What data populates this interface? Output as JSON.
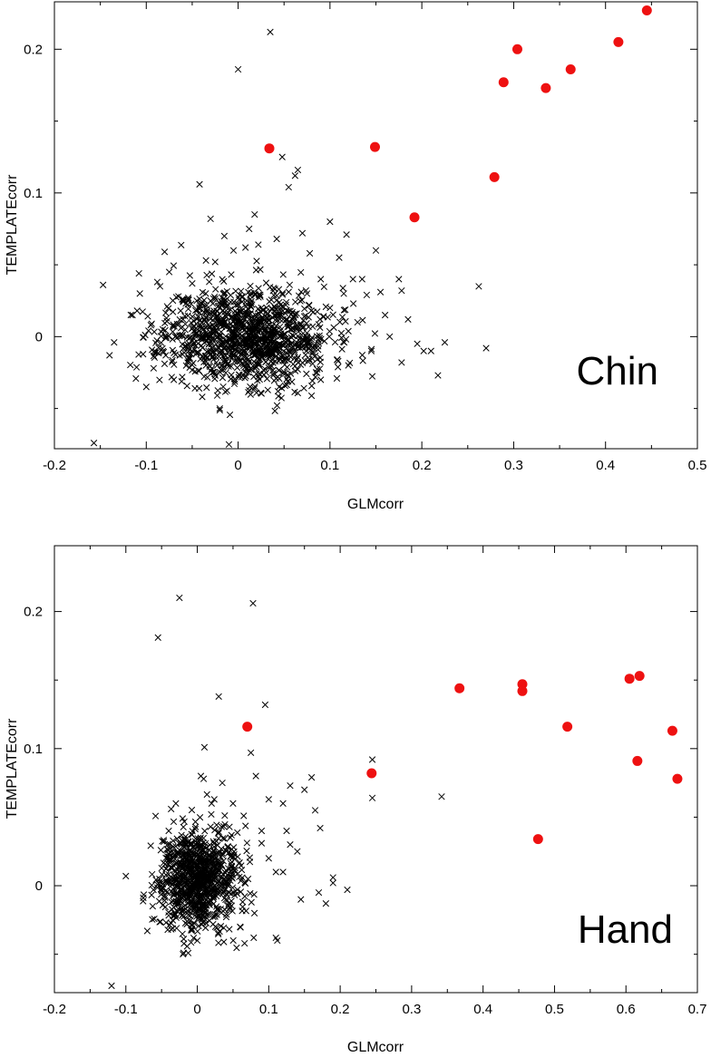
{
  "chart_data": [
    {
      "type": "scatter",
      "panel_label": "Chin",
      "xlabel": "GLMcorr",
      "ylabel": "TEMPLATEcorr",
      "xlim": [
        -0.2,
        0.5
      ],
      "ylim": [
        -0.078,
        0.233
      ],
      "xticks": [
        -0.2,
        -0.1,
        0,
        0.1,
        0.2,
        0.3,
        0.4,
        0.5
      ],
      "xtick_labels": [
        "-0.2",
        "-0.1",
        "0",
        "0.1",
        "0.2",
        "0.3",
        "0.4",
        "0.5"
      ],
      "yticks": [
        0,
        0.1,
        0.2
      ],
      "ytick_labels": [
        "0",
        "0.1",
        "0.2"
      ],
      "grid": false,
      "colors": {
        "background": "#000000",
        "highlight": "#ee1111"
      },
      "cluster": {
        "center": [
          0.01,
          0.0
        ],
        "spread": [
          0.045,
          0.017
        ],
        "count": 1200,
        "seed": 11
      },
      "background_points": [
        [
          -0.157,
          -0.074
        ],
        [
          -0.147,
          0.036
        ],
        [
          -0.14,
          -0.013
        ],
        [
          -0.135,
          -0.004
        ],
        [
          -0.115,
          0.015
        ],
        [
          -0.11,
          0.018
        ],
        [
          -0.108,
          0.044
        ],
        [
          -0.107,
          0.03
        ],
        [
          -0.1,
          -0.035
        ],
        [
          -0.095,
          0.008
        ],
        [
          -0.092,
          -0.022
        ],
        [
          -0.088,
          0.038
        ],
        [
          -0.085,
          0.035
        ],
        [
          -0.08,
          0.059
        ],
        [
          -0.075,
          0.045
        ],
        [
          -0.07,
          -0.03
        ],
        [
          -0.065,
          0.028
        ],
        [
          -0.06,
          0.012
        ],
        [
          -0.055,
          -0.018
        ],
        [
          -0.05,
          0.037
        ],
        [
          -0.045,
          0.025
        ],
        [
          -0.042,
          0.106
        ],
        [
          -0.035,
          0.053
        ],
        [
          -0.03,
          0.082
        ],
        [
          -0.025,
          0.052
        ],
        [
          -0.02,
          -0.05
        ],
        [
          -0.015,
          0.07
        ],
        [
          -0.01,
          -0.075
        ],
        [
          -0.005,
          0.06
        ],
        [
          0.0,
          0.186
        ],
        [
          0.008,
          0.062
        ],
        [
          0.012,
          0.075
        ],
        [
          0.018,
          0.085
        ],
        [
          0.022,
          0.064
        ],
        [
          0.035,
          0.212
        ],
        [
          0.042,
          0.068
        ],
        [
          0.048,
          0.125
        ],
        [
          0.055,
          0.104
        ],
        [
          0.062,
          0.112
        ],
        [
          0.065,
          0.116
        ],
        [
          0.07,
          0.072
        ],
        [
          0.078,
          0.058
        ],
        [
          0.09,
          0.04
        ],
        [
          0.1,
          0.08
        ],
        [
          0.11,
          0.055
        ],
        [
          0.118,
          0.071
        ],
        [
          0.125,
          0.04
        ],
        [
          0.135,
          0.04
        ],
        [
          0.14,
          0.029
        ],
        [
          0.15,
          0.06
        ],
        [
          0.155,
          0.031
        ],
        [
          0.16,
          0.015
        ],
        [
          0.175,
          0.04
        ],
        [
          0.178,
          0.032
        ],
        [
          0.178,
          -0.018
        ],
        [
          0.185,
          0.012
        ],
        [
          0.195,
          -0.005
        ],
        [
          0.202,
          -0.01
        ],
        [
          0.21,
          -0.01
        ],
        [
          0.225,
          -0.004
        ],
        [
          0.262,
          0.035
        ],
        [
          0.27,
          -0.008
        ],
        [
          0.12,
          -0.02
        ],
        [
          0.13,
          0.01
        ],
        [
          0.145,
          -0.01
        ],
        [
          0.165,
          0.0
        ],
        [
          0.09,
          -0.03
        ],
        [
          0.1,
          0.02
        ]
      ],
      "highlight_points": [
        [
          0.034,
          0.131
        ],
        [
          0.149,
          0.132
        ],
        [
          0.192,
          0.083
        ],
        [
          0.279,
          0.111
        ],
        [
          0.289,
          0.177
        ],
        [
          0.304,
          0.2
        ],
        [
          0.335,
          0.173
        ],
        [
          0.362,
          0.186
        ],
        [
          0.414,
          0.205
        ],
        [
          0.445,
          0.227
        ]
      ]
    },
    {
      "type": "scatter",
      "panel_label": "Hand",
      "xlabel": "GLMcorr",
      "ylabel": "TEMPLATEcorr",
      "xlim": [
        -0.2,
        0.7
      ],
      "ylim": [
        -0.078,
        0.248
      ],
      "xticks": [
        -0.2,
        -0.1,
        0,
        0.1,
        0.2,
        0.3,
        0.4,
        0.5,
        0.6,
        0.7
      ],
      "xtick_labels": [
        "-0.2",
        "-0.1",
        "0",
        "0.1",
        "0.2",
        "0.3",
        "0.4",
        "0.5",
        "0.6",
        "0.7"
      ],
      "yticks": [
        0,
        0.1,
        0.2
      ],
      "ytick_labels": [
        "0",
        "0.1",
        "0.2"
      ],
      "grid": false,
      "colors": {
        "background": "#000000",
        "highlight": "#ee1111"
      },
      "cluster": {
        "center": [
          0.0,
          0.005
        ],
        "spread": [
          0.028,
          0.018
        ],
        "count": 950,
        "seed": 29
      },
      "background_points": [
        [
          -0.12,
          -0.073
        ],
        [
          -0.1,
          0.007
        ],
        [
          -0.07,
          -0.033
        ],
        [
          -0.055,
          0.181
        ],
        [
          -0.04,
          0.04
        ],
        [
          -0.03,
          0.06
        ],
        [
          -0.025,
          0.21
        ],
        [
          -0.02,
          -0.05
        ],
        [
          0.0,
          -0.04
        ],
        [
          0.005,
          0.08
        ],
        [
          0.01,
          0.101
        ],
        [
          0.02,
          0.06
        ],
        [
          0.03,
          0.138
        ],
        [
          0.035,
          0.075
        ],
        [
          0.05,
          0.06
        ],
        [
          0.065,
          0.051
        ],
        [
          0.075,
          0.097
        ],
        [
          0.078,
          0.206
        ],
        [
          0.082,
          0.08
        ],
        [
          0.09,
          0.031
        ],
        [
          0.095,
          0.132
        ],
        [
          0.1,
          0.063
        ],
        [
          0.11,
          -0.038
        ],
        [
          0.112,
          -0.04
        ],
        [
          0.12,
          0.06
        ],
        [
          0.125,
          0.04
        ],
        [
          0.13,
          0.073
        ],
        [
          0.14,
          0.025
        ],
        [
          0.145,
          -0.01
        ],
        [
          0.15,
          0.07
        ],
        [
          0.16,
          0.079
        ],
        [
          0.165,
          0.055
        ],
        [
          0.17,
          -0.005
        ],
        [
          0.172,
          0.042
        ],
        [
          0.18,
          -0.013
        ],
        [
          0.19,
          0.006
        ],
        [
          0.19,
          0.002
        ],
        [
          0.21,
          -0.003
        ],
        [
          0.245,
          0.092
        ],
        [
          0.245,
          0.064
        ],
        [
          0.342,
          0.065
        ],
        [
          0.1,
          0.02
        ],
        [
          0.13,
          0.03
        ],
        [
          0.08,
          -0.02
        ],
        [
          0.06,
          -0.03
        ],
        [
          0.11,
          0.01
        ],
        [
          0.12,
          0.01
        ],
        [
          0.09,
          0.04
        ]
      ],
      "highlight_points": [
        [
          0.07,
          0.116
        ],
        [
          0.244,
          0.082
        ],
        [
          0.367,
          0.144
        ],
        [
          0.455,
          0.147
        ],
        [
          0.455,
          0.142
        ],
        [
          0.477,
          0.034
        ],
        [
          0.518,
          0.116
        ],
        [
          0.605,
          0.151
        ],
        [
          0.619,
          0.153
        ],
        [
          0.616,
          0.091
        ],
        [
          0.665,
          0.113
        ],
        [
          0.672,
          0.078
        ]
      ]
    }
  ]
}
